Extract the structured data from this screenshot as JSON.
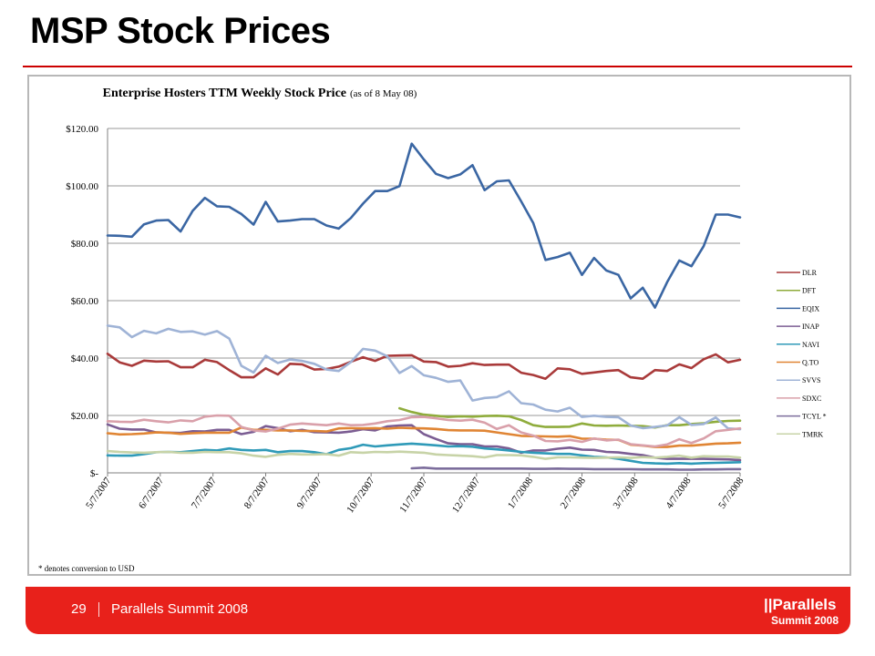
{
  "slide": {
    "title": "MSP Stock Prices",
    "page_number": "29",
    "footer_text": "Parallels Summit 2008",
    "logo_brand": "||Parallels",
    "logo_sub": "Summit 2008",
    "accent_color": "#e8211b"
  },
  "chart_data": {
    "type": "line",
    "title": "Enterprise Hosters TTM Weekly Stock Price",
    "subtitle": "(as of 8 May 08)",
    "footnote": "* denotes conversion to USD",
    "ylim": [
      0,
      120
    ],
    "yticks": [
      0,
      20,
      40,
      60,
      80,
      100,
      120
    ],
    "ytick_labels": [
      "$-",
      "$20.00",
      "$40.00",
      "$60.00",
      "$80.00",
      "$100.00",
      "$120.00"
    ],
    "xticks": [
      "5/7/2007",
      "6/7/2007",
      "7/7/2007",
      "8/7/2007",
      "9/7/2007",
      "10/7/2007",
      "11/7/2007",
      "12/7/2007",
      "1/7/2008",
      "2/7/2008",
      "3/7/2008",
      "4/7/2008",
      "5/7/2008"
    ],
    "grid": true,
    "legend_position": "right",
    "x": [
      "5/7/2007",
      "5/14/2007",
      "5/21/2007",
      "5/28/2007",
      "6/4/2007",
      "6/11/2007",
      "6/18/2007",
      "6/25/2007",
      "7/2/2007",
      "7/9/2007",
      "7/16/2007",
      "7/23/2007",
      "7/30/2007",
      "8/6/2007",
      "8/13/2007",
      "8/20/2007",
      "8/27/2007",
      "9/3/2007",
      "9/10/2007",
      "9/17/2007",
      "9/24/2007",
      "10/1/2007",
      "10/8/2007",
      "10/15/2007",
      "10/22/2007",
      "10/29/2007",
      "11/5/2007",
      "11/12/2007",
      "11/19/2007",
      "11/26/2007",
      "12/3/2007",
      "12/10/2007",
      "12/17/2007",
      "12/24/2007",
      "12/31/2007",
      "1/7/2008",
      "1/14/2008",
      "1/21/2008",
      "1/28/2008",
      "2/4/2008",
      "2/11/2008",
      "2/18/2008",
      "2/25/2008",
      "3/3/2008",
      "3/10/2008",
      "3/17/2008",
      "3/24/2008",
      "3/31/2008",
      "4/7/2008",
      "4/14/2008",
      "4/21/2008",
      "4/28/2008",
      "5/5/2008"
    ],
    "series": [
      {
        "name": "DLR",
        "color": "#a93a3a",
        "values": [
          41.5,
          38.5,
          37.3,
          39.1,
          38.8,
          38.9,
          36.8,
          36.8,
          39.4,
          38.6,
          35.8,
          33.3,
          33.3,
          36.4,
          34.3,
          38.0,
          37.8,
          36.0,
          36.2,
          37.0,
          38.7,
          40.3,
          39.0,
          40.8,
          40.9,
          41.0,
          38.8,
          38.6,
          37.0,
          37.3,
          38.2,
          37.6,
          37.7,
          37.7,
          34.9,
          34.1,
          32.8,
          36.4,
          36.1,
          34.5,
          35.0,
          35.5,
          35.8,
          33.3,
          32.8,
          35.8,
          35.5,
          37.8,
          36.5,
          39.6,
          41.3,
          38.5,
          39.4
        ]
      },
      {
        "name": "DFT",
        "color": "#8fac3c",
        "values": [
          null,
          null,
          null,
          null,
          null,
          null,
          null,
          null,
          null,
          null,
          null,
          null,
          null,
          null,
          null,
          null,
          null,
          null,
          null,
          null,
          null,
          null,
          null,
          null,
          22.5,
          21.2,
          20.3,
          19.9,
          19.5,
          19.7,
          19.6,
          19.8,
          19.9,
          19.7,
          18.4,
          16.6,
          16.0,
          16.0,
          16.1,
          17.2,
          16.5,
          16.4,
          16.5,
          16.4,
          16.3,
          15.8,
          16.6,
          16.6,
          17.0,
          17.3,
          17.8,
          18.1,
          18.2
        ]
      },
      {
        "name": "EQIX",
        "color": "#3a66a3",
        "values": [
          82.7,
          82.6,
          82.3,
          86.6,
          87.9,
          88.1,
          84.1,
          91.3,
          95.8,
          92.9,
          92.7,
          90.2,
          86.5,
          94.4,
          87.6,
          87.9,
          88.4,
          88.4,
          86.2,
          85.1,
          88.8,
          93.8,
          98.2,
          98.2,
          99.9,
          114.7,
          109.2,
          104.2,
          102.7,
          104.0,
          107.2,
          98.5,
          101.6,
          101.9,
          94.6,
          87.0,
          74.2,
          75.2,
          76.7,
          69.0,
          74.9,
          70.5,
          69.0,
          60.8,
          64.5,
          57.6,
          66.4,
          74.0,
          72.0,
          79.0,
          90.0,
          90.0,
          89.0
        ]
      },
      {
        "name": "INAP",
        "color": "#7b5d93",
        "values": [
          16.9,
          15.4,
          15.1,
          15.1,
          14.1,
          14.0,
          13.9,
          14.5,
          14.4,
          15.0,
          15.0,
          13.5,
          14.3,
          16.3,
          15.6,
          14.5,
          15.0,
          14.2,
          14.1,
          14.0,
          14.4,
          15.2,
          14.8,
          16.2,
          16.5,
          16.6,
          13.5,
          11.8,
          10.3,
          10.0,
          10.0,
          9.2,
          9.2,
          8.5,
          7.0,
          7.8,
          7.8,
          8.4,
          8.8,
          8.1,
          8.0,
          7.3,
          7.1,
          6.6,
          6.2,
          5.3,
          4.9,
          4.9,
          4.9,
          4.9,
          4.8,
          4.7,
          4.4
        ]
      },
      {
        "name": "NAVI",
        "color": "#2f9ab8",
        "values": [
          6.1,
          6.0,
          6.0,
          6.5,
          7.2,
          7.3,
          7.2,
          7.6,
          8.0,
          7.8,
          8.5,
          8.0,
          7.8,
          8.0,
          7.2,
          7.6,
          7.6,
          7.2,
          6.5,
          8.0,
          8.6,
          9.8,
          9.2,
          9.6,
          9.9,
          10.2,
          9.9,
          9.6,
          9.2,
          9.3,
          9.1,
          8.5,
          8.2,
          7.8,
          7.3,
          7.0,
          6.8,
          6.6,
          6.6,
          6.1,
          5.6,
          5.4,
          4.9,
          4.2,
          3.5,
          3.3,
          3.2,
          3.4,
          3.2,
          3.4,
          3.5,
          3.6,
          3.7
        ]
      },
      {
        "name": "Q.TO",
        "color": "#e08534",
        "values": [
          13.8,
          13.4,
          13.5,
          13.7,
          14.1,
          14.0,
          13.6,
          13.8,
          14.0,
          14.0,
          14.0,
          15.8,
          15.0,
          15.0,
          14.8,
          14.8,
          14.6,
          14.6,
          14.4,
          15.5,
          15.6,
          15.5,
          15.6,
          15.4,
          15.7,
          15.6,
          15.5,
          15.3,
          14.9,
          14.8,
          14.8,
          14.7,
          14.1,
          13.5,
          12.9,
          12.8,
          12.7,
          12.6,
          12.8,
          11.9,
          11.9,
          11.6,
          11.5,
          9.8,
          9.5,
          9.0,
          9.0,
          9.5,
          9.5,
          9.8,
          10.2,
          10.3,
          10.5
        ]
      },
      {
        "name": "SVVS",
        "color": "#9fb3d6",
        "values": [
          51.3,
          50.7,
          47.3,
          49.5,
          48.6,
          50.2,
          49.1,
          49.3,
          48.2,
          49.4,
          46.8,
          37.3,
          35.0,
          40.8,
          38.3,
          39.5,
          39.0,
          38.0,
          36.0,
          35.5,
          38.6,
          43.2,
          42.6,
          40.6,
          34.8,
          37.2,
          34.0,
          33.1,
          31.7,
          32.2,
          25.2,
          26.1,
          26.4,
          28.4,
          24.3,
          23.8,
          22.0,
          21.4,
          22.7,
          19.5,
          19.9,
          19.5,
          19.4,
          16.5,
          15.6,
          16.0,
          16.5,
          19.4,
          16.7,
          17.0,
          19.3,
          15.5,
          15.2
        ]
      },
      {
        "name": "SDXC",
        "color": "#d9a0aa",
        "values": [
          18.0,
          17.8,
          17.7,
          18.5,
          18.0,
          17.6,
          18.3,
          18.0,
          19.6,
          20.0,
          19.9,
          16.0,
          14.8,
          14.4,
          15.4,
          16.8,
          17.2,
          16.9,
          16.6,
          17.2,
          16.6,
          16.7,
          17.2,
          18.0,
          18.4,
          19.4,
          19.5,
          19.0,
          18.4,
          18.2,
          18.5,
          17.5,
          15.3,
          16.6,
          14.1,
          13.0,
          11.1,
          11.0,
          11.5,
          10.8,
          12.0,
          11.3,
          11.6,
          10.0,
          9.6,
          9.2,
          9.9,
          11.7,
          10.4,
          12.0,
          14.5,
          15.0,
          15.5
        ]
      },
      {
        "name": "TCYL *",
        "color": "#7c6d9c",
        "values": [
          null,
          null,
          null,
          null,
          null,
          null,
          null,
          null,
          null,
          null,
          null,
          null,
          null,
          null,
          null,
          null,
          null,
          null,
          null,
          null,
          null,
          null,
          null,
          null,
          null,
          1.6,
          1.8,
          1.5,
          1.5,
          1.5,
          1.5,
          1.5,
          1.5,
          1.5,
          1.5,
          1.4,
          1.4,
          1.5,
          1.4,
          1.4,
          1.3,
          1.3,
          1.3,
          1.3,
          1.2,
          1.2,
          1.2,
          1.1,
          1.1,
          1.2,
          1.2,
          1.3,
          1.3
        ]
      },
      {
        "name": "TMRK",
        "color": "#c7d3a7",
        "values": [
          7.6,
          7.3,
          7.1,
          7.0,
          7.2,
          7.3,
          7.0,
          7.0,
          7.3,
          7.2,
          7.2,
          6.8,
          6.0,
          5.6,
          6.3,
          6.6,
          6.4,
          6.4,
          6.5,
          6.0,
          7.2,
          7.0,
          7.3,
          7.2,
          7.4,
          7.2,
          7.0,
          6.4,
          6.2,
          6.0,
          5.8,
          5.4,
          6.2,
          6.2,
          6.1,
          5.6,
          4.9,
          5.4,
          5.4,
          5.3,
          5.2,
          5.3,
          5.4,
          5.2,
          5.5,
          5.3,
          5.6,
          6.0,
          5.3,
          5.8,
          5.7,
          5.7,
          5.3
        ]
      }
    ]
  }
}
